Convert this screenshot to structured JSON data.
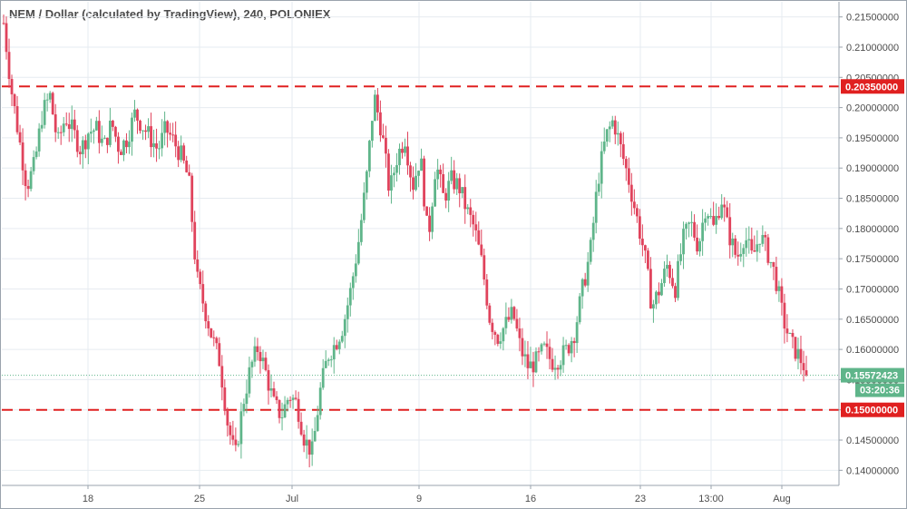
{
  "chart_data": {
    "type": "candlestick",
    "title": "NEM / Dollar (calculated by TradingView), 240, POLONIEX",
    "ylim": [
      0.1375,
      0.2175
    ],
    "y_ticks": [
      "0.21500000",
      "0.21000000",
      "0.20500000",
      "0.20000000",
      "0.19500000",
      "0.19000000",
      "0.18500000",
      "0.18000000",
      "0.17500000",
      "0.17000000",
      "0.16500000",
      "0.16000000",
      "0.15500000",
      "0.15000000",
      "0.14500000",
      "0.14000000"
    ],
    "x_ticks": [
      "18",
      "25",
      "Jul",
      "9",
      "16",
      "23",
      "13:00",
      "Aug"
    ],
    "grid": true,
    "horizontal_lines": [
      {
        "value": 0.2035,
        "label": "0.20350000",
        "color": "#e02020",
        "style": "dashed"
      },
      {
        "value": 0.15,
        "label": "0.15000000",
        "color": "#e02020",
        "style": "dashed"
      }
    ],
    "last_price": {
      "value": 0.15572423,
      "label": "0.15572423",
      "countdown": "03:20:36",
      "color": "#5fb58a"
    },
    "colors": {
      "up": "#5fb58a",
      "down": "#e0435c",
      "grid": "#e6ebf0",
      "axis": "#9aa3ad"
    },
    "price_path": [
      0.214,
      0.203,
      0.195,
      0.187,
      0.1905,
      0.199,
      0.202,
      0.194,
      0.1985,
      0.196,
      0.193,
      0.196,
      0.1965,
      0.1935,
      0.1975,
      0.193,
      0.195,
      0.199,
      0.197,
      0.195,
      0.193,
      0.1965,
      0.1945,
      0.192,
      0.188,
      0.172,
      0.167,
      0.162,
      0.158,
      0.148,
      0.142,
      0.151,
      0.157,
      0.1605,
      0.156,
      0.151,
      0.149,
      0.1525,
      0.151,
      0.145,
      0.143,
      0.153,
      0.159,
      0.161,
      0.164,
      0.17,
      0.178,
      0.188,
      0.202,
      0.196,
      0.186,
      0.192,
      0.195,
      0.187,
      0.192,
      0.178,
      0.191,
      0.185,
      0.188,
      0.187,
      0.183,
      0.18,
      0.174,
      0.165,
      0.162,
      0.164,
      0.166,
      0.16,
      0.157,
      0.158,
      0.16,
      0.158,
      0.1585,
      0.16,
      0.163,
      0.17,
      0.176,
      0.188,
      0.195,
      0.198,
      0.193,
      0.188,
      0.182,
      0.176,
      0.167,
      0.17,
      0.174,
      0.17,
      0.178,
      0.181,
      0.177,
      0.184,
      0.18,
      0.185,
      0.179,
      0.175,
      0.179,
      0.175,
      0.179,
      0.176,
      0.172,
      0.165,
      0.161,
      0.159,
      0.1565
    ]
  }
}
